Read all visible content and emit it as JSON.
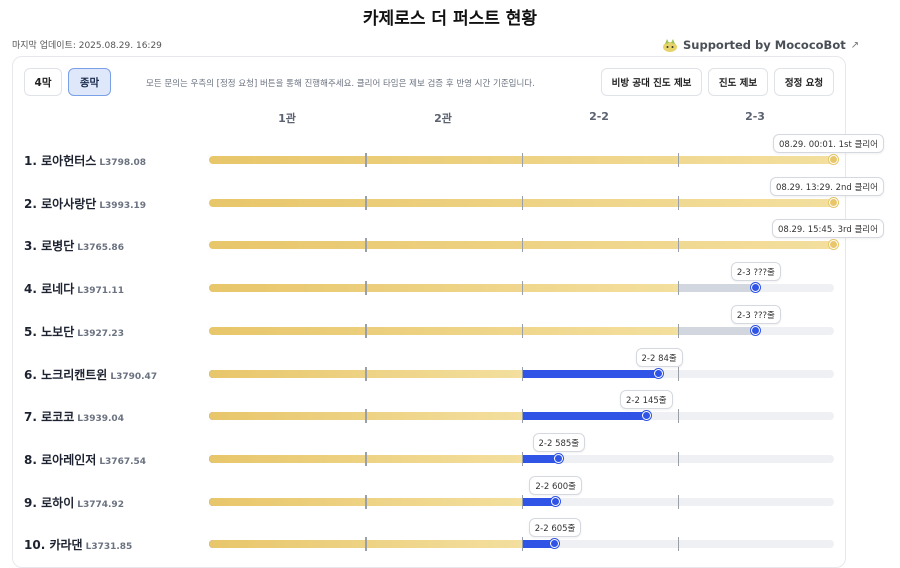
{
  "title": "카제로스 더 퍼스트 현황",
  "last_updated": "마지막 업데이트: 2025.08.29. 16:29",
  "supported_by": "Supported by MococoBot",
  "tabs": [
    {
      "label": "4막",
      "active": false
    },
    {
      "label": "종막",
      "active": true
    }
  ],
  "notice": "모든 문의는 우측의 [정정 요청] 버튼을 통해 진행해주세요. 클리어 타임은 제보 검증 후 반영 시간 기준입니다.",
  "actions": [
    {
      "label": "비방 공대 진도 제보"
    },
    {
      "label": "진도 제보"
    },
    {
      "label": "정정 요청"
    }
  ],
  "stages": [
    "1관",
    "2관",
    "2-2",
    "2-3"
  ],
  "colors": {
    "gold": "#e8c66a",
    "blue": "#2f54e6",
    "grey": "#d2d6de",
    "track": "#eef0f4"
  },
  "guilds": [
    {
      "rank": "1.",
      "name": "로아헌터스",
      "level": "L3798.08",
      "gold": 1.0,
      "grey": 0.0,
      "blue": 0.0,
      "marker": 1.0,
      "marker_color": "gold",
      "tooltip": "08.29. 00:01. 1st 클리어"
    },
    {
      "rank": "2.",
      "name": "로아사랑단",
      "level": "L3993.19",
      "gold": 1.0,
      "grey": 0.0,
      "blue": 0.0,
      "marker": 1.0,
      "marker_color": "gold",
      "tooltip": "08.29. 13:29. 2nd 클리어"
    },
    {
      "rank": "3.",
      "name": "로병단",
      "level": "L3765.86",
      "gold": 1.0,
      "grey": 0.0,
      "blue": 0.0,
      "marker": 1.0,
      "marker_color": "gold",
      "tooltip": "08.29. 15:45. 3rd 클리어"
    },
    {
      "rank": "4.",
      "name": "로네다",
      "level": "L3971.11",
      "gold": 0.75,
      "grey": 0.875,
      "blue": 0.0,
      "marker": 0.875,
      "marker_color": "blue",
      "tooltip": "2-3 ???줄"
    },
    {
      "rank": "5.",
      "name": "노보단",
      "level": "L3927.23",
      "gold": 0.75,
      "grey": 0.875,
      "blue": 0.0,
      "marker": 0.875,
      "marker_color": "blue",
      "tooltip": "2-3 ???줄"
    },
    {
      "rank": "6.",
      "name": "노크리캔트윈",
      "level": "L3790.47",
      "gold": 0.5,
      "grey": 0.0,
      "blue": 0.72,
      "marker": 0.72,
      "marker_color": "blue",
      "tooltip": "2-2 84줄"
    },
    {
      "rank": "7.",
      "name": "로코코",
      "level": "L3939.04",
      "gold": 0.5,
      "grey": 0.0,
      "blue": 0.7,
      "marker": 0.7,
      "marker_color": "blue",
      "tooltip": "2-2 145줄"
    },
    {
      "rank": "8.",
      "name": "로아레인저",
      "level": "L3767.54",
      "gold": 0.5,
      "grey": 0.0,
      "blue": 0.56,
      "marker": 0.56,
      "marker_color": "blue",
      "tooltip": "2-2 585줄"
    },
    {
      "rank": "9.",
      "name": "로하이",
      "level": "L3774.92",
      "gold": 0.5,
      "grey": 0.0,
      "blue": 0.555,
      "marker": 0.555,
      "marker_color": "blue",
      "tooltip": "2-2 600줄"
    },
    {
      "rank": "10.",
      "name": "카라댄",
      "level": "L3731.85",
      "gold": 0.5,
      "grey": 0.0,
      "blue": 0.554,
      "marker": 0.554,
      "marker_color": "blue",
      "tooltip": "2-2 605줄"
    }
  ]
}
